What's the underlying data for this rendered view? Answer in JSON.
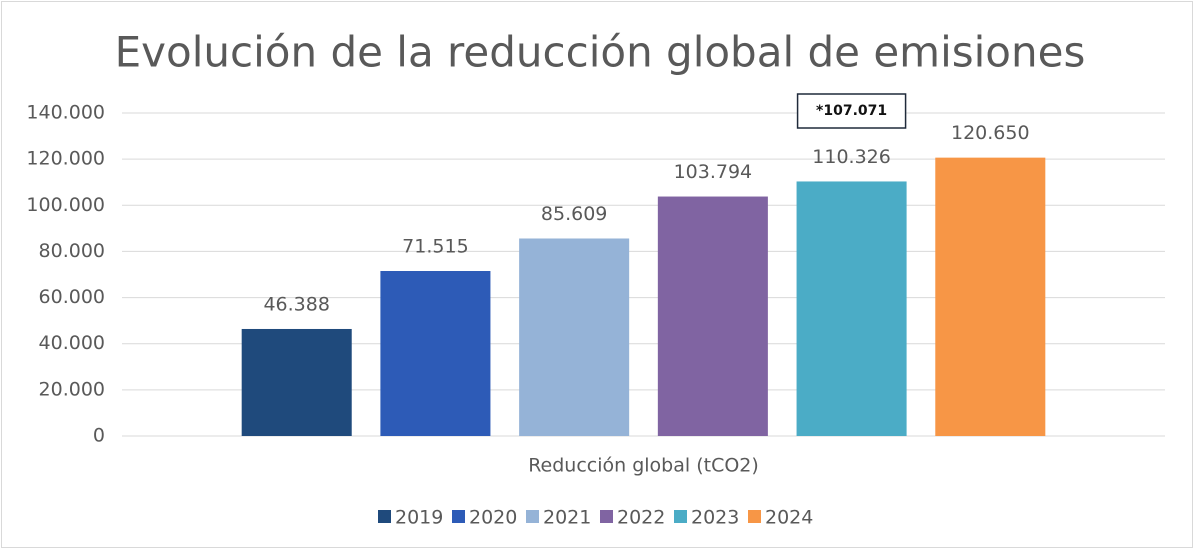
{
  "chart_data": {
    "type": "bar",
    "title": "Evolución de la reducción global de emisiones",
    "categories": [
      "Reducción global (tCO2)"
    ],
    "series": [
      {
        "name": "2019",
        "color": "#1f4a7c",
        "values": [
          46388
        ],
        "value_labels": [
          "46.388"
        ]
      },
      {
        "name": "2020",
        "color": "#2d5bb7",
        "values": [
          71515
        ],
        "value_labels": [
          "71.515"
        ]
      },
      {
        "name": "2021",
        "color": "#95b3d7",
        "values": [
          85609
        ],
        "value_labels": [
          "85.609"
        ]
      },
      {
        "name": "2022",
        "color": "#8064a2",
        "values": [
          103794
        ],
        "value_labels": [
          "103.794"
        ]
      },
      {
        "name": "2023",
        "color": "#4bacc6",
        "values": [
          110326
        ],
        "value_labels": [
          "110.326"
        ]
      },
      {
        "name": "2024",
        "color": "#f79646",
        "values": [
          120650
        ],
        "value_labels": [
          "120.650"
        ]
      }
    ],
    "annotation": "*107.071",
    "ylim": [
      0,
      140000
    ],
    "yticks": [
      0,
      {
        "value": 20000,
        "label": "20.000"
      },
      {
        "value": 40000,
        "label": "40.000"
      },
      {
        "value": 60000,
        "label": "60.000"
      },
      {
        "value": 80000,
        "label": "80.000"
      },
      {
        "value": 100000,
        "label": "100.000"
      },
      {
        "value": 120000,
        "label": "120.000"
      },
      {
        "value": 140000,
        "label": "140.000"
      }
    ],
    "grid": true,
    "legend": "bottom"
  }
}
